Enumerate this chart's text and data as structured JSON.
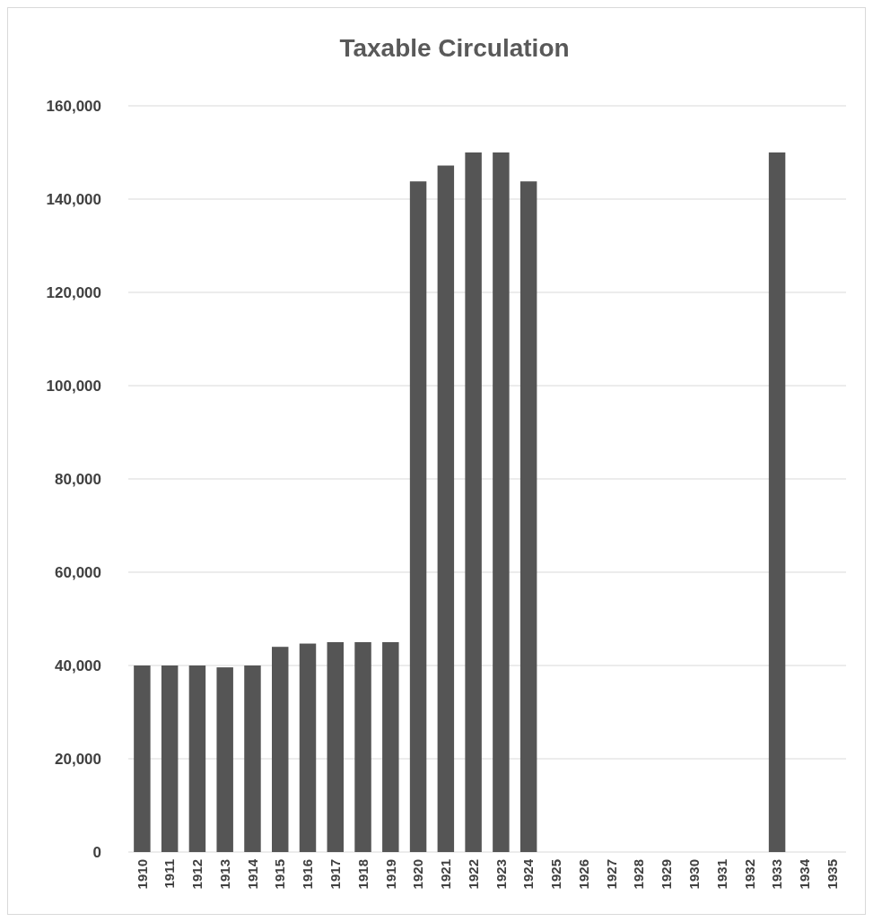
{
  "chart_data": {
    "type": "bar",
    "title": "Taxable Circulation",
    "categories": [
      "1910",
      "1911",
      "1912",
      "1913",
      "1914",
      "1915",
      "1916",
      "1917",
      "1918",
      "1919",
      "1920",
      "1921",
      "1922",
      "1923",
      "1924",
      "1925",
      "1926",
      "1927",
      "1928",
      "1929",
      "1930",
      "1931",
      "1932",
      "1933",
      "1934",
      "1935"
    ],
    "values": [
      40000,
      40000,
      40000,
      39600,
      40000,
      44000,
      44700,
      45000,
      45000,
      45000,
      143800,
      147200,
      150000,
      150000,
      143800,
      null,
      null,
      null,
      null,
      null,
      null,
      null,
      null,
      150000,
      null,
      null
    ],
    "color": "#555555",
    "ylim": [
      0,
      160000
    ],
    "yticks": [
      {
        "value": 0,
        "label": "0"
      },
      {
        "value": 20000,
        "label": "20,000"
      },
      {
        "value": 40000,
        "label": "40,000"
      },
      {
        "value": 60000,
        "label": "60,000"
      },
      {
        "value": 80000,
        "label": "80,000"
      },
      {
        "value": 100000,
        "label": "100,000"
      },
      {
        "value": 120000,
        "label": "120,000"
      },
      {
        "value": 140000,
        "label": "140,000"
      },
      {
        "value": 160000,
        "label": "160,000"
      }
    ],
    "grid": "y"
  }
}
